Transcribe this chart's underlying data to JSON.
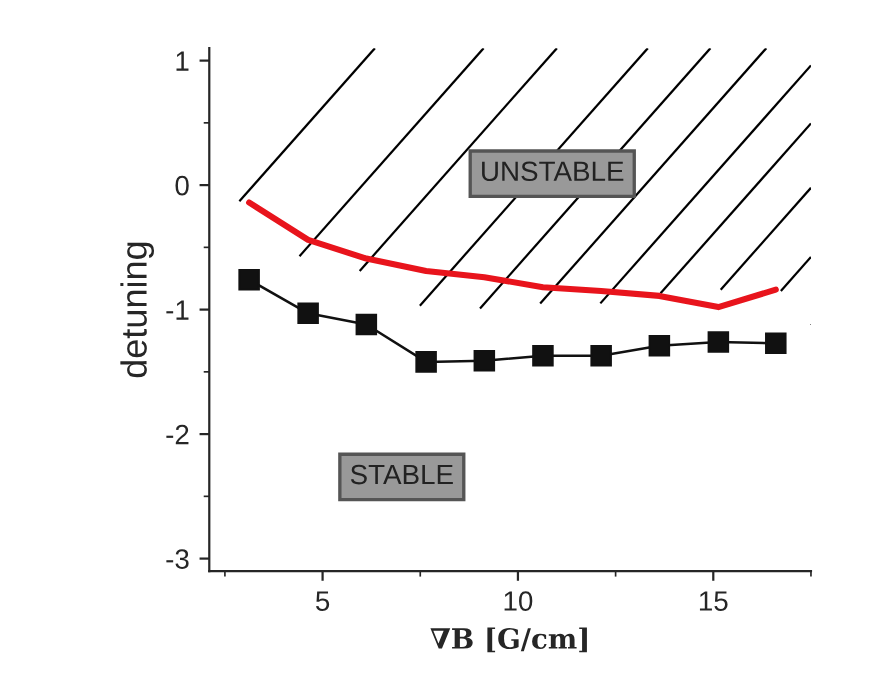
{
  "chart_data": {
    "type": "line",
    "xlabel": "∇B [G/cm]",
    "ylabel": "detuning",
    "xlim": [
      2.1,
      17.5
    ],
    "ylim": [
      -3.1,
      1.1
    ],
    "xticks": [
      5,
      10,
      15
    ],
    "yticks": [
      -3,
      -2,
      -1,
      0,
      1
    ],
    "grid": false,
    "legend": false,
    "series": [
      {
        "color": "#e8141c",
        "marker": "none",
        "x": [
          3.12,
          4.63,
          6.12,
          7.65,
          9.14,
          10.64,
          12.13,
          13.62,
          15.13,
          16.6
        ],
        "values": [
          -0.14,
          -0.44,
          -0.59,
          -0.69,
          -0.74,
          -0.82,
          -0.85,
          -0.89,
          -0.98,
          -0.84
        ]
      },
      {
        "color": "#111111",
        "marker": "square",
        "x": [
          3.12,
          4.63,
          6.12,
          7.65,
          9.14,
          10.64,
          12.13,
          13.62,
          15.13,
          16.6
        ],
        "values": [
          -0.76,
          -1.03,
          -1.12,
          -1.42,
          -1.41,
          -1.37,
          -1.37,
          -1.29,
          -1.26,
          -1.27
        ]
      }
    ],
    "annotations": [
      "UNSTABLE",
      "STABLE"
    ]
  }
}
